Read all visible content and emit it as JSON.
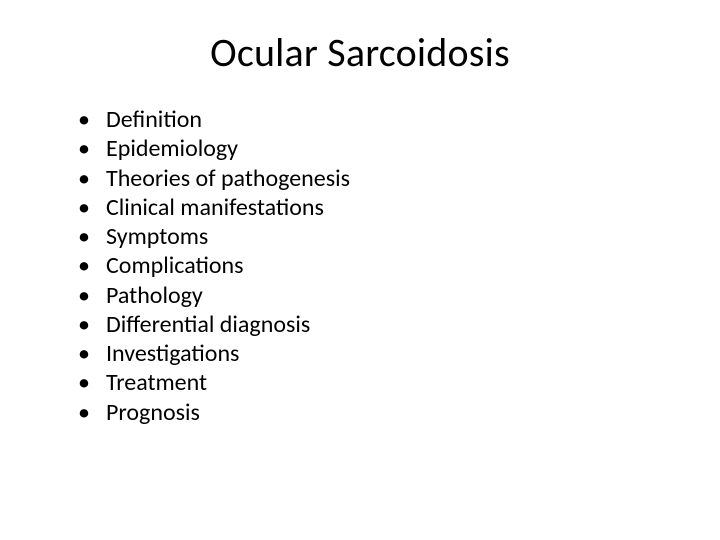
{
  "slide": {
    "title": "Ocular Sarcoidosis",
    "title_fontsize": 40,
    "body_fontsize": 24,
    "background_color": "#ffffff",
    "text_color": "#000000",
    "bullets": [
      "Definition",
      "Epidemiology",
      "Theories of pathogenesis",
      "Clinical manifestations",
      "Symptoms",
      "Complications",
      "Pathology",
      "Differential diagnosis",
      "Investigations",
      "Treatment",
      "Prognosis"
    ]
  }
}
